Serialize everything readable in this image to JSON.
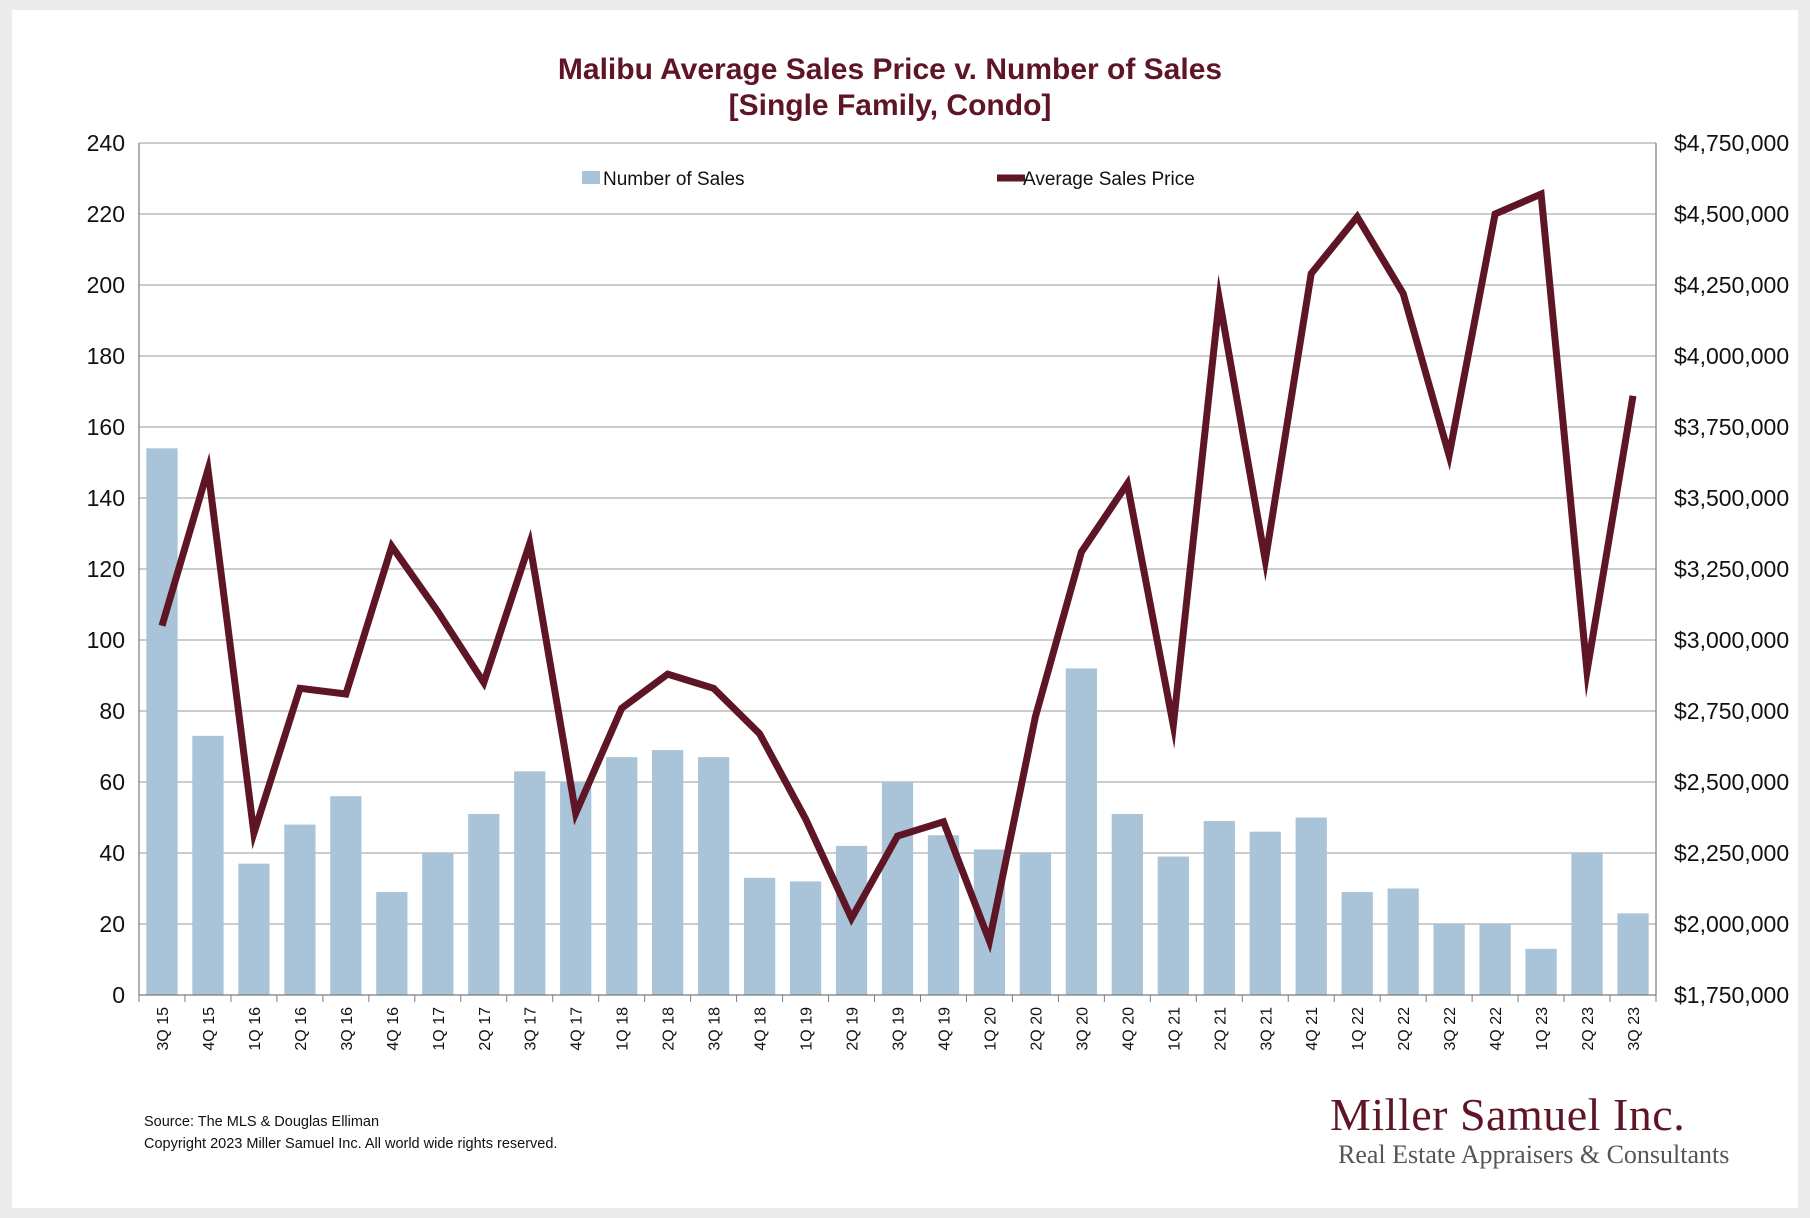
{
  "chart_data": {
    "type": "bar",
    "title": "Malibu Average Sales Price v. Number of Sales",
    "subtitle": "[Single Family, Condo]",
    "categories": [
      "3Q 15",
      "4Q 15",
      "1Q 16",
      "2Q 16",
      "3Q 16",
      "4Q 16",
      "1Q 17",
      "2Q 17",
      "3Q 17",
      "4Q 17",
      "1Q 18",
      "2Q 18",
      "3Q 18",
      "4Q 18",
      "1Q 19",
      "2Q 19",
      "3Q 19",
      "4Q 19",
      "1Q 20",
      "2Q 20",
      "3Q 20",
      "4Q 20",
      "1Q 21",
      "2Q 21",
      "3Q 21",
      "4Q 21",
      "1Q 22",
      "2Q 22",
      "3Q 22",
      "4Q 22",
      "1Q 23",
      "2Q 23",
      "3Q 23"
    ],
    "series": [
      {
        "name": "Number of Sales",
        "type": "bar",
        "axis": "left",
        "color": "#a9c4d8",
        "values": [
          154,
          73,
          37,
          48,
          56,
          29,
          40,
          51,
          63,
          60,
          67,
          69,
          67,
          33,
          32,
          42,
          60,
          45,
          41,
          40,
          92,
          51,
          39,
          49,
          46,
          50,
          29,
          30,
          20,
          20,
          13,
          40,
          23
        ]
      },
      {
        "name": "Average Sales Price",
        "type": "line",
        "axis": "right",
        "color": "#5e1525",
        "values": [
          3050000,
          3600000,
          2320000,
          2830000,
          2810000,
          3330000,
          3100000,
          2850000,
          3340000,
          2390000,
          2760000,
          2880000,
          2830000,
          2670000,
          2370000,
          2020000,
          2310000,
          2360000,
          1940000,
          2730000,
          3310000,
          3550000,
          2700000,
          4200000,
          3280000,
          4290000,
          4490000,
          4220000,
          3650000,
          4500000,
          4570000,
          2890000,
          3860000
        ]
      }
    ],
    "y_left": {
      "min": 0,
      "max": 240,
      "ticks": [
        "0",
        "20",
        "40",
        "60",
        "80",
        "100",
        "120",
        "140",
        "160",
        "180",
        "200",
        "220",
        "240"
      ]
    },
    "y_right": {
      "min": 1750000,
      "max": 4750000,
      "ticks": [
        "$1,750,000",
        "$2,000,000",
        "$2,250,000",
        "$2,500,000",
        "$2,750,000",
        "$3,000,000",
        "$3,250,000",
        "$3,500,000",
        "$3,750,000",
        "$4,000,000",
        "$4,250,000",
        "$4,500,000",
        "$4,750,000"
      ]
    },
    "grid": true,
    "legend": "top-center"
  },
  "footer": {
    "source": "Source: The MLS & Douglas Elliman",
    "copyright": "Copyright 2023 Miller Samuel Inc.  All world wide rights reserved."
  },
  "logo": {
    "name": "Miller Samuel Inc.",
    "tagline": "Real Estate Appraisers & Consultants"
  }
}
